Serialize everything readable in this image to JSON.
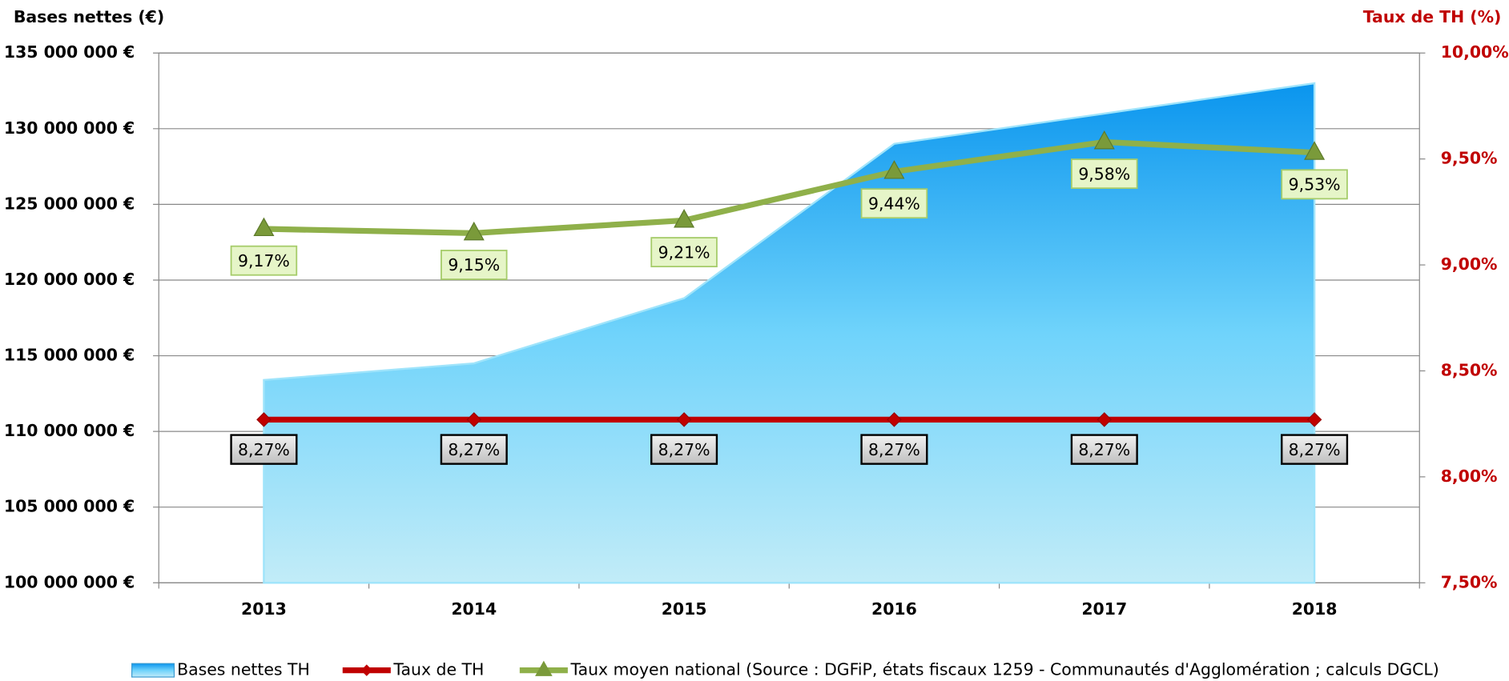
{
  "chart_data": {
    "type": "combo",
    "y_label": "Bases nettes (€)",
    "y2_label": "Taux de TH (%)",
    "categories": [
      "2013",
      "2014",
      "2015",
      "2016",
      "2017",
      "2018"
    ],
    "series": [
      {
        "name": "Bases nettes TH",
        "type": "area",
        "axis": "y",
        "color": "#0a95ee",
        "values": [
          113400000,
          114500000,
          118800000,
          129000000,
          131000000,
          133000000
        ]
      },
      {
        "name": "Taux de TH",
        "type": "line",
        "axis": "y2",
        "color": "#c00000",
        "values": [
          8.27,
          8.27,
          8.27,
          8.27,
          8.27,
          8.27
        ],
        "value_labels": [
          "8,27%",
          "8,27%",
          "8,27%",
          "8,27%",
          "8,27%",
          "8,27%"
        ]
      },
      {
        "name": "Taux moyen national (Source : DGFiP, états fiscaux 1259 - Communautés d'Agglomération ; calculs DGCL)",
        "type": "line",
        "axis": "y2",
        "color": "#8fb04a",
        "values": [
          9.17,
          9.15,
          9.21,
          9.44,
          9.58,
          9.53
        ],
        "value_labels": [
          "9,17%",
          "9,15%",
          "9,21%",
          "9,44%",
          "9,58%",
          "9,53%"
        ]
      }
    ],
    "ylim": [
      100000000,
      135000000
    ],
    "yticks": [
      {
        "value": 100000000,
        "label": "100 000 000 €"
      },
      {
        "value": 105000000,
        "label": "105 000 000 €"
      },
      {
        "value": 110000000,
        "label": "110 000 000 €"
      },
      {
        "value": 115000000,
        "label": "115 000 000 €"
      },
      {
        "value": 120000000,
        "label": "120 000 000 €"
      },
      {
        "value": 125000000,
        "label": "125 000 000 €"
      },
      {
        "value": 130000000,
        "label": "130 000 000 €"
      },
      {
        "value": 135000000,
        "label": "135 000 000 €"
      }
    ],
    "y2lim": [
      7.5,
      10
    ],
    "y2ticks": [
      {
        "value": 7.5,
        "label": "7,50%"
      },
      {
        "value": 8,
        "label": "8,00%"
      },
      {
        "value": 8.5,
        "label": "8,50%"
      },
      {
        "value": 9,
        "label": "9,00%"
      },
      {
        "value": 9.5,
        "label": "9,50%"
      },
      {
        "value": 10,
        "label": "10,00%"
      }
    ],
    "grid": true,
    "legend": "bottom"
  }
}
